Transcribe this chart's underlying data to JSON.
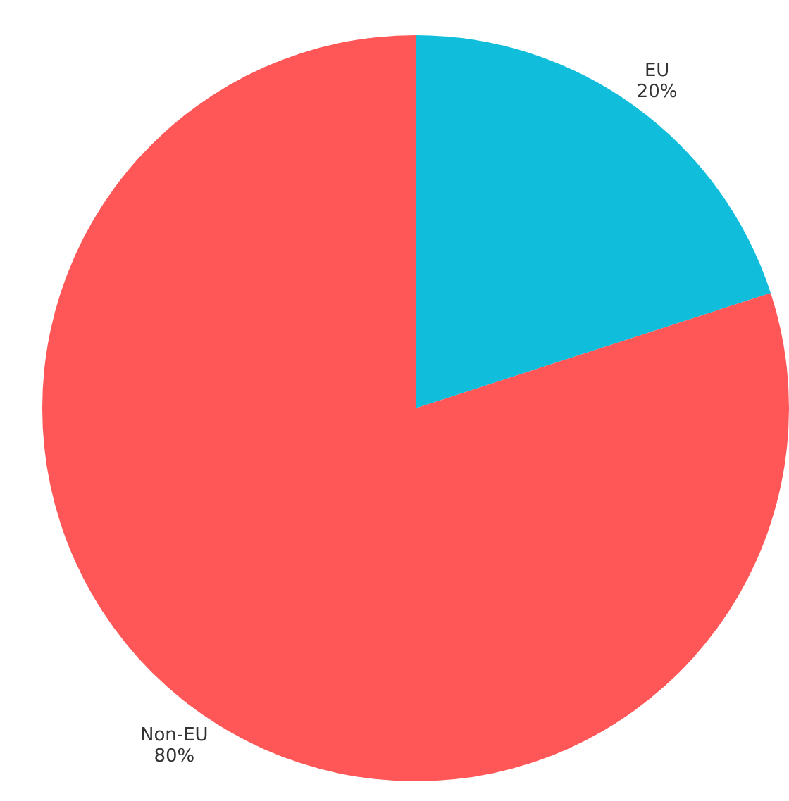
{
  "chart_data": {
    "type": "pie",
    "categories": [
      "EU",
      "Non-EU"
    ],
    "values": [
      20,
      80
    ],
    "colors": [
      "#10bedc",
      "#ff5757"
    ],
    "value_labels": [
      "20%",
      "80%"
    ],
    "legend": false
  }
}
